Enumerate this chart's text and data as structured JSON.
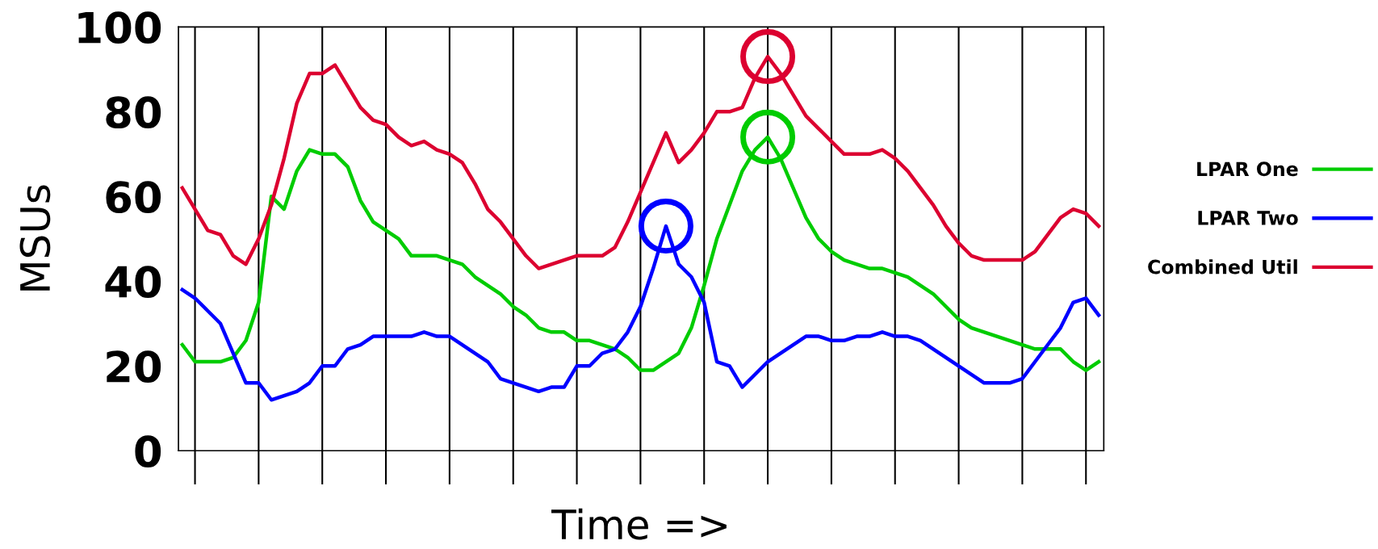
{
  "chart_data": {
    "type": "line",
    "xlabel": "Time =>",
    "ylabel": "MSUs",
    "categories": [
      null,
      null,
      null,
      null,
      null,
      null,
      null,
      null,
      null,
      null,
      null,
      null,
      null,
      null,
      null,
      null,
      null,
      null,
      null,
      null,
      null,
      null,
      null,
      null,
      null,
      null,
      null,
      null,
      null,
      null,
      null,
      null,
      null,
      null,
      null,
      null,
      null,
      null,
      null,
      null,
      null,
      null,
      null,
      null,
      null,
      null,
      null,
      null,
      null,
      null,
      null,
      null,
      null,
      null,
      null,
      null,
      null,
      null,
      null,
      null,
      null,
      null,
      null,
      null,
      null,
      null,
      null,
      null,
      null,
      null,
      null,
      null,
      null
    ],
    "ylim": [
      0,
      100
    ],
    "yticks": [
      0,
      20,
      40,
      60,
      80,
      100
    ],
    "tick_labels": "y",
    "grid": "x",
    "legend": "right",
    "marker": "none",
    "line_style": "solid",
    "series": [
      {
        "name": "LPAR One",
        "color": "#00cc00",
        "values": [
          25,
          21,
          21,
          21,
          22,
          26,
          35,
          60,
          57,
          66,
          71,
          70,
          70,
          67,
          59,
          54,
          52,
          50,
          46,
          46,
          46,
          45,
          44,
          41,
          39,
          37,
          34,
          32,
          29,
          28,
          28,
          26,
          26,
          25,
          24,
          22,
          19,
          19,
          21,
          23,
          29,
          39,
          50,
          58,
          66,
          71,
          74,
          69,
          62,
          55,
          50,
          47,
          45,
          44,
          43,
          43,
          42,
          41,
          39,
          37,
          34,
          31,
          29,
          28,
          27,
          26,
          25,
          24,
          24,
          24,
          21,
          19,
          21
        ]
      },
      {
        "name": "LPAR Two",
        "color": "#0000ff",
        "values": [
          38,
          36,
          33,
          30,
          23,
          16,
          16,
          12,
          13,
          14,
          16,
          20,
          20,
          24,
          25,
          27,
          27,
          27,
          27,
          28,
          27,
          27,
          25,
          23,
          21,
          17,
          16,
          15,
          14,
          15,
          15,
          20,
          20,
          23,
          24,
          28,
          34,
          43,
          53,
          44,
          41,
          35,
          21,
          20,
          15,
          18,
          21,
          23,
          25,
          27,
          27,
          26,
          26,
          27,
          27,
          28,
          27,
          27,
          26,
          24,
          22,
          20,
          18,
          16,
          16,
          16,
          17,
          21,
          25,
          29,
          35,
          36,
          32
        ]
      },
      {
        "name": "Combined Util",
        "color": "#dc0030",
        "values": [
          62,
          57,
          52,
          51,
          46,
          44,
          50,
          58,
          69,
          82,
          89,
          89,
          91,
          86,
          81,
          78,
          77,
          74,
          72,
          73,
          71,
          70,
          68,
          63,
          57,
          54,
          50,
          46,
          43,
          44,
          45,
          46,
          46,
          46,
          48,
          54,
          61,
          68,
          75,
          68,
          71,
          75,
          80,
          80,
          81,
          88,
          93,
          89,
          84,
          79,
          76,
          73,
          70,
          70,
          70,
          71,
          69,
          66,
          62,
          58,
          53,
          49,
          46,
          45,
          45,
          45,
          45,
          47,
          51,
          55,
          57,
          56,
          53
        ]
      }
    ]
  }
}
